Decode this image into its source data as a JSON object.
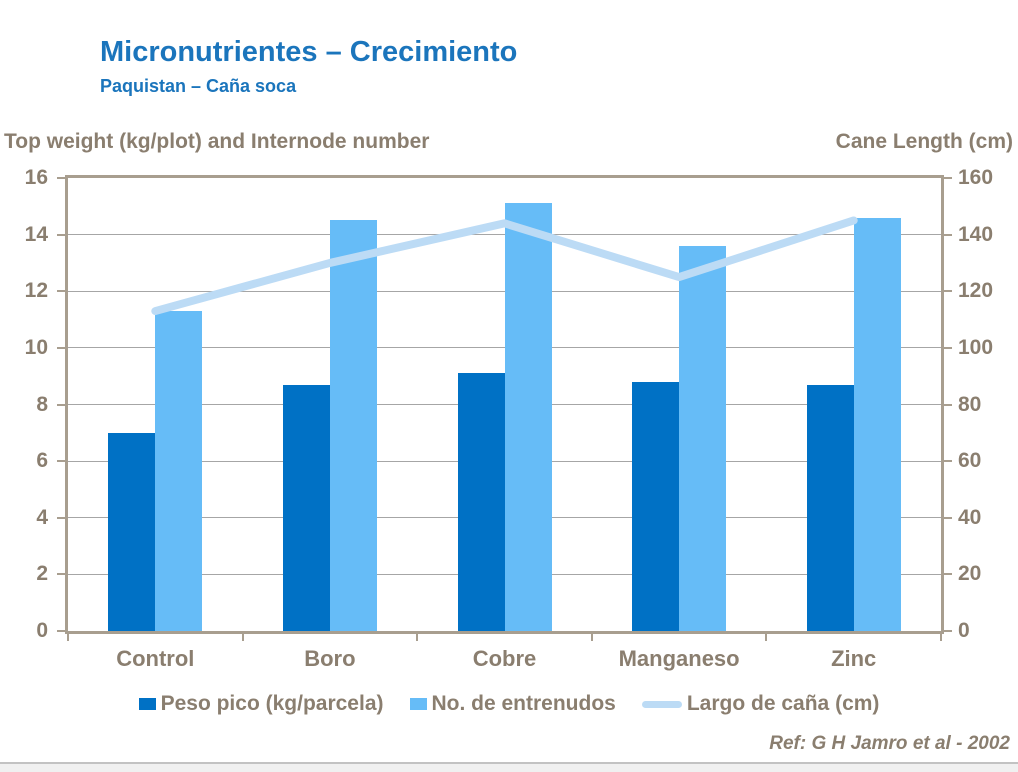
{
  "header": {
    "title": "Micronutrientes – Crecimiento",
    "subtitle": "Paquistan – Caña soca"
  },
  "axis_headers": {
    "left": "Top weight (kg/plot) and Internode number",
    "right": "Cane Length (cm)"
  },
  "footer": {
    "ref": "Ref: G H Jamro et al - 2002"
  },
  "colors": {
    "title_blue": "#1B75BC",
    "text_taupe": "#8A7E6F",
    "axis_border": "#A89E8F",
    "gridline": "#A6A6A6",
    "bar_dark_blue": "#0071C5",
    "bar_light_blue": "#66BCF7",
    "line_pale_blue": "#BCDBF5"
  },
  "chart_data": {
    "type": "bar",
    "subtype": "grouped-bars-with-line-overlay",
    "title": "Micronutrientes – Crecimiento",
    "subtitle": "Paquistan – Caña soca",
    "categories": [
      "Control",
      "Boro",
      "Cobre",
      "Manganeso",
      "Zinc"
    ],
    "series": [
      {
        "name": "Peso pico (kg/parcela)",
        "type": "bar",
        "axis": "left",
        "color": "#0071C5",
        "values": [
          7.0,
          8.7,
          9.1,
          8.8,
          8.7
        ]
      },
      {
        "name": "No. de entrenudos",
        "type": "bar",
        "axis": "left",
        "color": "#66BCF7",
        "values": [
          11.3,
          14.5,
          15.1,
          13.6,
          14.6
        ]
      },
      {
        "name": "Largo de caña (cm)",
        "type": "line",
        "axis": "right",
        "color": "#BCDBF5",
        "values": [
          113,
          130,
          144,
          125,
          145
        ]
      }
    ],
    "left_axis": {
      "label": "Top weight (kg/plot) and Internode number",
      "min": 0,
      "max": 16,
      "step": 2,
      "ticks": [
        0,
        2,
        4,
        6,
        8,
        10,
        12,
        14,
        16
      ]
    },
    "right_axis": {
      "label": "Cane Length (cm)",
      "min": 0,
      "max": 160,
      "step": 20,
      "ticks": [
        0,
        20,
        40,
        60,
        80,
        100,
        120,
        140,
        160
      ]
    },
    "grid": true,
    "legend_position": "bottom",
    "annotations": [
      "Ref: G H Jamro et al - 2002"
    ]
  }
}
